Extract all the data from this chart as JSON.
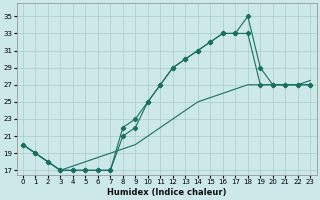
{
  "xlabel": "Humidex (Indice chaleur)",
  "bg_color": "#cce8e8",
  "grid_color": "#aacccc",
  "line_color": "#1a7060",
  "xlim": [
    -0.5,
    23.5
  ],
  "ylim": [
    16.5,
    36.5
  ],
  "xticks": [
    0,
    1,
    2,
    3,
    4,
    5,
    6,
    7,
    8,
    9,
    10,
    11,
    12,
    13,
    14,
    15,
    16,
    17,
    18,
    19,
    20,
    21,
    22,
    23
  ],
  "yticks": [
    17,
    19,
    21,
    23,
    25,
    27,
    29,
    31,
    33,
    35
  ],
  "line1_x": [
    0,
    1,
    2,
    3,
    4,
    5,
    6,
    7,
    8,
    9,
    10,
    11,
    12,
    13,
    14,
    15,
    16,
    17,
    18,
    19,
    20,
    21,
    22,
    23
  ],
  "line1_y": [
    20,
    19,
    18,
    17,
    17,
    17,
    17,
    17,
    22,
    23,
    25,
    27,
    29,
    30,
    31,
    32,
    33,
    33,
    35,
    29,
    27,
    27,
    27,
    27
  ],
  "line2_x": [
    0,
    1,
    2,
    3,
    4,
    5,
    6,
    7,
    8,
    9,
    10,
    11,
    12,
    13,
    14,
    15,
    16,
    17,
    18,
    19,
    20,
    21,
    22,
    23
  ],
  "line2_y": [
    20,
    19,
    18,
    17,
    17,
    17,
    17,
    17,
    21,
    22,
    25,
    27,
    29,
    30,
    31,
    32,
    33,
    33,
    33,
    27,
    27,
    27,
    27,
    27
  ],
  "line3_x": [
    0,
    1,
    2,
    3,
    4,
    5,
    6,
    7,
    8,
    9,
    10,
    11,
    12,
    13,
    14,
    15,
    16,
    17,
    18,
    19,
    20,
    21,
    22,
    23
  ],
  "line3_y": [
    20,
    19,
    18,
    17,
    17.5,
    18,
    18.5,
    19,
    19.5,
    20,
    21,
    22,
    23,
    24,
    25,
    25.5,
    26,
    26.5,
    27,
    27,
    27,
    27,
    27,
    27.5
  ]
}
